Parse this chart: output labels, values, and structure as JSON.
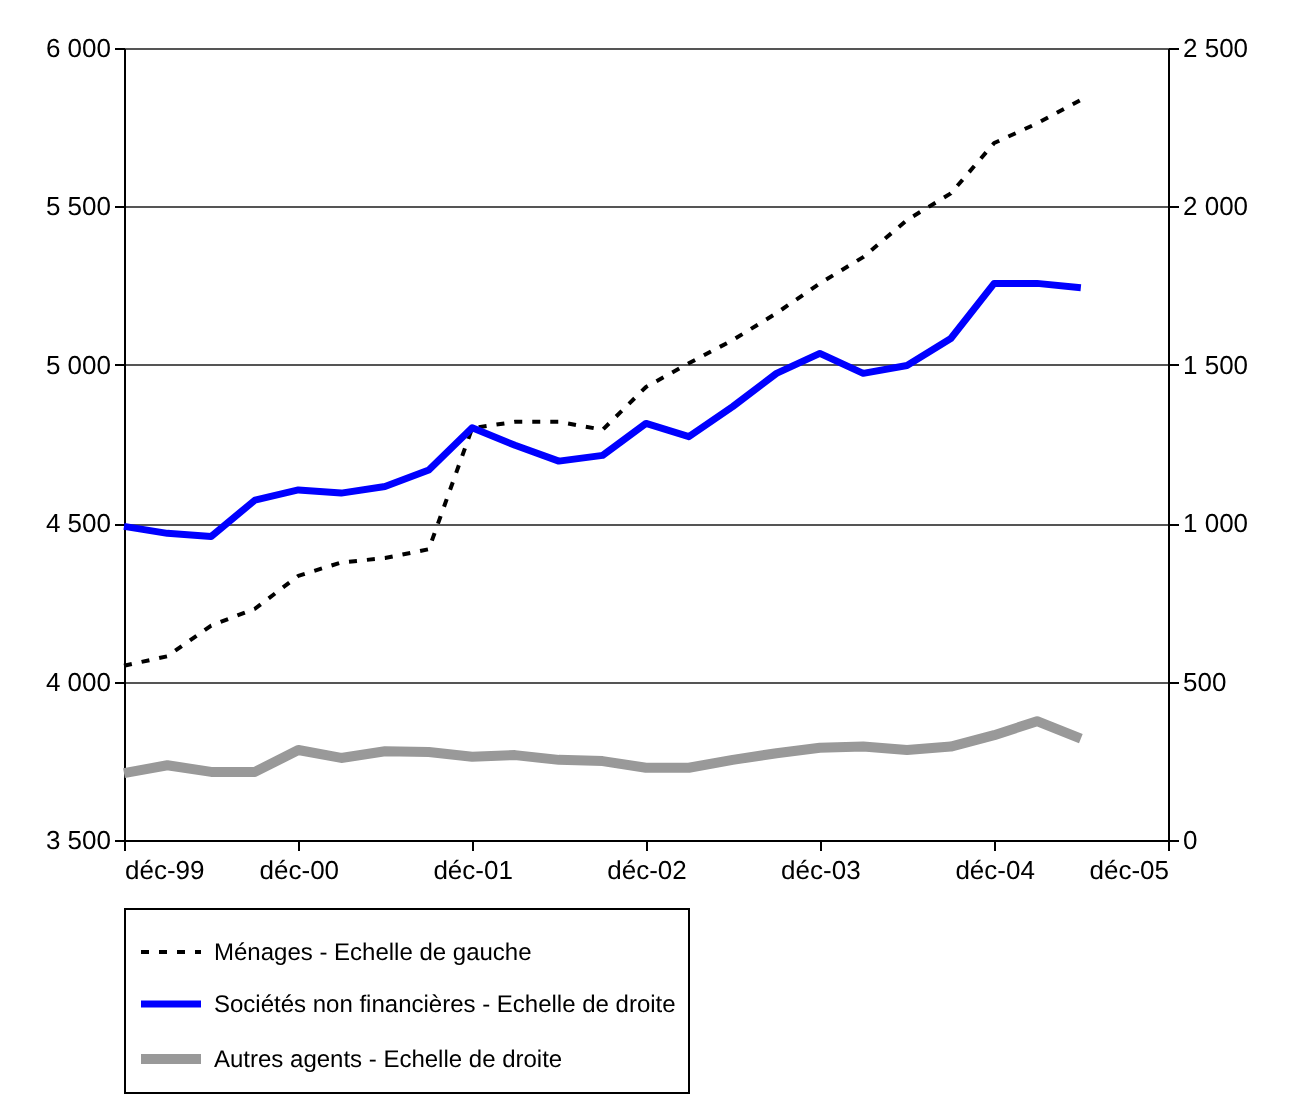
{
  "chart_data": {
    "type": "line",
    "x": [
      "1999-12",
      "2000-03",
      "2000-06",
      "2000-09",
      "2000-12",
      "2001-03",
      "2001-06",
      "2001-09",
      "2001-12",
      "2002-03",
      "2002-06",
      "2002-09",
      "2002-12",
      "2003-03",
      "2003-06",
      "2003-09",
      "2003-12",
      "2004-03",
      "2004-06",
      "2004-09",
      "2004-12",
      "2005-03",
      "2005-06"
    ],
    "series": [
      {
        "name": "Ménages - Echelle de gauche",
        "color": "#000000",
        "line_style": "dashed",
        "values": [
          4050,
          4080,
          4177,
          4230,
          4334,
          4376,
          4390,
          4418,
          4800,
          4820,
          4820,
          4795,
          4930,
          5005,
          5078,
          5163,
          5257,
          5340,
          5457,
          5541,
          5700,
          5762,
          5836
        ]
      },
      {
        "name": "Sociétés non financières - Echelle de droite",
        "color": "#0000ff",
        "line_style": "solid",
        "axis": "y2",
        "values": [
          990,
          968,
          958,
          1073,
          1105,
          1095,
          1116,
          1168,
          1301,
          1246,
          1196,
          1214,
          1315,
          1273,
          1368,
          1473,
          1536,
          1473,
          1498,
          1583,
          1757,
          1757,
          1743
        ]
      },
      {
        "name": "Autres agents - Echelle de droite",
        "color": "#999999",
        "line_style": "solid",
        "axis": "y2",
        "values": [
          211,
          236,
          215,
          215,
          284,
          259,
          280,
          278,
          263,
          268,
          253,
          249,
          228,
          228,
          253,
          274,
          291,
          295,
          284,
          295,
          331,
          375,
          320
        ]
      }
    ],
    "xlim": [
      "1999-12",
      "2005-12"
    ],
    "xticks": [
      {
        "value": "1999-12",
        "label": "déc-99"
      },
      {
        "value": "2000-12",
        "label": "déc-00"
      },
      {
        "value": "2001-12",
        "label": "déc-01"
      },
      {
        "value": "2002-12",
        "label": "déc-02"
      },
      {
        "value": "2003-12",
        "label": "déc-03"
      },
      {
        "value": "2004-12",
        "label": "déc-04"
      },
      {
        "value": "2005-12",
        "label": "déc-05"
      }
    ],
    "ylim": [
      3500,
      6000
    ],
    "yticks": [
      {
        "value": 3500,
        "label": "3 500"
      },
      {
        "value": 4000,
        "label": "4 000"
      },
      {
        "value": 4500,
        "label": "4 500"
      },
      {
        "value": 5000,
        "label": "5 000"
      },
      {
        "value": 5500,
        "label": "5 500"
      },
      {
        "value": 6000,
        "label": "6 000"
      }
    ],
    "y2lim": [
      0,
      2500
    ],
    "y2ticks": [
      0,
      500,
      {
        "value": 1000,
        "label": "1 000"
      },
      {
        "value": 1500,
        "label": "1 500"
      },
      {
        "value": 2000,
        "label": "2 000"
      },
      {
        "value": 2500,
        "label": "2 500"
      }
    ],
    "grid": "y",
    "legend": "bottom",
    "marker": "none"
  }
}
